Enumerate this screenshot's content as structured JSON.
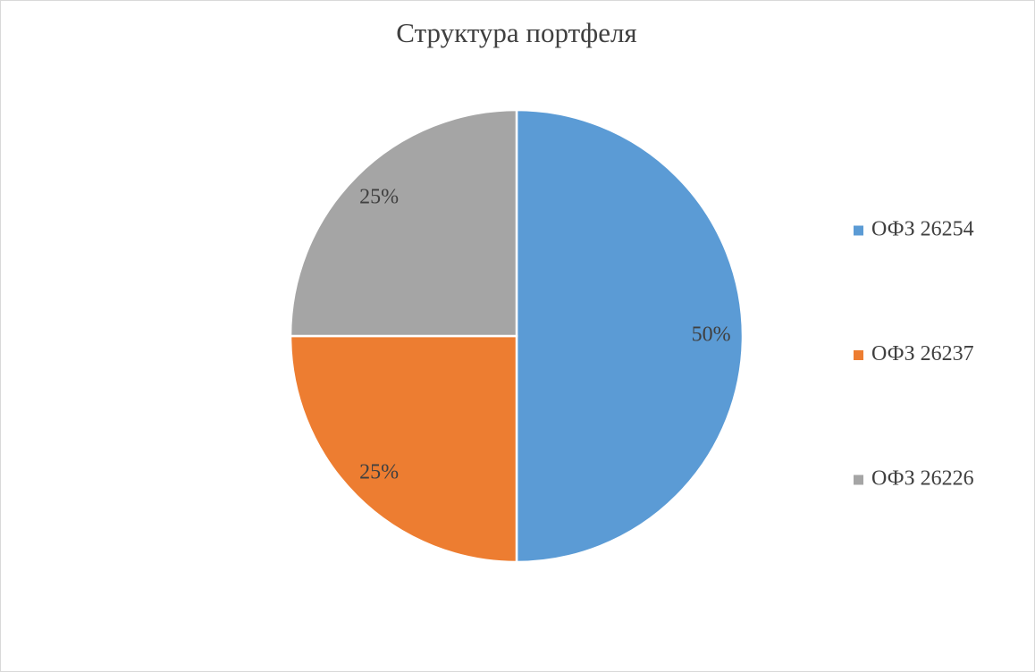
{
  "chart_data": {
    "type": "pie",
    "title": "Структура портфеля",
    "categories": [
      "ОФЗ 26254",
      "ОФЗ 26237",
      "ОФЗ 26226"
    ],
    "values": [
      50,
      25,
      25
    ],
    "value_labels": [
      "50%",
      "25%",
      "25%"
    ],
    "colors": [
      "#5b9bd5",
      "#ed7d31",
      "#a5a5a5"
    ],
    "legend": "right"
  }
}
